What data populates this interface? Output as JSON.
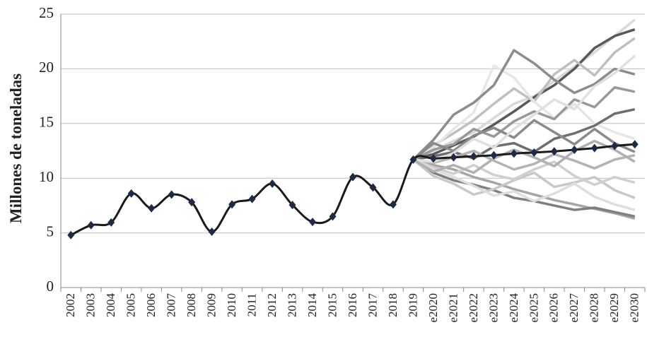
{
  "chart_data": {
    "type": "line",
    "y_label": "Millones de toneladas",
    "categories": [
      "2002",
      "2003",
      "2004",
      "2005",
      "2006",
      "2007",
      "2008",
      "2009",
      "2010",
      "2011",
      "2012",
      "2013",
      "2014",
      "2015",
      "2016",
      "2017",
      "2018",
      "2019",
      "e2020",
      "e2021",
      "e2022",
      "e2023",
      "e2024",
      "e2025",
      "e2026",
      "e2027",
      "e2028",
      "e2029",
      "e2030"
    ],
    "ylim": [
      0,
      25
    ],
    "yticks": [
      0,
      5,
      10,
      15,
      20,
      25
    ],
    "grid": true,
    "series": [
      {
        "color": "#d9d9d9",
        "values": [
          null,
          null,
          null,
          null,
          null,
          null,
          null,
          null,
          null,
          null,
          null,
          null,
          null,
          null,
          null,
          null,
          null,
          11.7,
          12.5,
          13.4,
          14.2,
          15.5,
          16.8,
          17.5,
          18.9,
          20.2,
          21.5,
          23,
          24.5
        ]
      },
      {
        "color": "#595959",
        "values": [
          null,
          null,
          null,
          null,
          null,
          null,
          null,
          null,
          null,
          null,
          null,
          null,
          null,
          null,
          null,
          null,
          null,
          11.7,
          12.2,
          13,
          13.8,
          14.9,
          16.1,
          17.4,
          18.5,
          20,
          21.9,
          23,
          23.6
        ]
      },
      {
        "color": "#a6a6a6",
        "values": [
          null,
          null,
          null,
          null,
          null,
          null,
          null,
          null,
          null,
          null,
          null,
          null,
          null,
          null,
          null,
          null,
          null,
          11.7,
          11.2,
          10.8,
          10.1,
          9.6,
          9.0,
          8.5,
          8.0,
          7.6,
          7.2,
          6.8,
          6.3
        ]
      },
      {
        "color": "#bfbfbf",
        "values": [
          null,
          null,
          null,
          null,
          null,
          null,
          null,
          null,
          null,
          null,
          null,
          null,
          null,
          null,
          null,
          null,
          null,
          11.7,
          13,
          14.1,
          15.3,
          16.8,
          18.2,
          17,
          19.5,
          20.8,
          19.4,
          21.5,
          22.8
        ]
      },
      {
        "color": "#7f7f7f",
        "values": [
          null,
          null,
          null,
          null,
          null,
          null,
          null,
          null,
          null,
          null,
          null,
          null,
          null,
          null,
          null,
          null,
          null,
          11.7,
          10.5,
          9.8,
          9.4,
          8.9,
          8.2,
          7.9,
          7.5,
          7.1,
          7.3,
          6.9,
          6.5
        ]
      },
      {
        "color": "#e6e6e6",
        "values": [
          null,
          null,
          null,
          null,
          null,
          null,
          null,
          null,
          null,
          null,
          null,
          null,
          null,
          null,
          null,
          null,
          null,
          11.7,
          12.8,
          14.5,
          16,
          20.3,
          19.2,
          17,
          15.5,
          16.8,
          15,
          14.2,
          13.6
        ]
      },
      {
        "color": "#8c8c8c",
        "values": [
          null,
          null,
          null,
          null,
          null,
          null,
          null,
          null,
          null,
          null,
          null,
          null,
          null,
          null,
          null,
          null,
          null,
          11.7,
          13.5,
          15.8,
          16.9,
          18.5,
          21.7,
          20.5,
          19,
          17.8,
          18.6,
          20,
          19.5
        ]
      },
      {
        "color": "#c8c8c8",
        "values": [
          null,
          null,
          null,
          null,
          null,
          null,
          null,
          null,
          null,
          null,
          null,
          null,
          null,
          null,
          null,
          null,
          null,
          11.7,
          10.2,
          9.5,
          8.5,
          9,
          9.8,
          10.5,
          9.2,
          9.6,
          10.1,
          8.9,
          8.2
        ]
      },
      {
        "color": "#6e6e6e",
        "values": [
          null,
          null,
          null,
          null,
          null,
          null,
          null,
          null,
          null,
          null,
          null,
          null,
          null,
          null,
          null,
          null,
          null,
          11.7,
          12,
          12.4,
          11.8,
          12.9,
          13.2,
          12.4,
          13.6,
          14.1,
          14.8,
          15.9,
          16.3
        ]
      },
      {
        "color": "#b3b3b3",
        "values": [
          null,
          null,
          null,
          null,
          null,
          null,
          null,
          null,
          null,
          null,
          null,
          null,
          null,
          null,
          null,
          null,
          null,
          11.7,
          11.4,
          11.9,
          12.5,
          11.6,
          10.8,
          11.3,
          12.2,
          11.6,
          10.9,
          11.7,
          12.1
        ]
      },
      {
        "color": "#cfcfcf",
        "values": [
          null,
          null,
          null,
          null,
          null,
          null,
          null,
          null,
          null,
          null,
          null,
          null,
          null,
          null,
          null,
          null,
          null,
          11.7,
          11,
          10.4,
          11.2,
          10.3,
          9.9,
          10.8,
          11.5,
          10.2,
          9.4,
          10.1,
          9.6
        ]
      },
      {
        "color": "#999999",
        "values": [
          null,
          null,
          null,
          null,
          null,
          null,
          null,
          null,
          null,
          null,
          null,
          null,
          null,
          null,
          null,
          null,
          null,
          11.7,
          12.6,
          13.1,
          14.5,
          13.8,
          15.2,
          16.1,
          15.4,
          17.2,
          16.5,
          18.3,
          17.9
        ]
      },
      {
        "color": "#dedede",
        "values": [
          null,
          null,
          null,
          null,
          null,
          null,
          null,
          null,
          null,
          null,
          null,
          null,
          null,
          null,
          null,
          null,
          null,
          11.7,
          10.8,
          10.1,
          9.3,
          8.4,
          8.8,
          7.9,
          8.6,
          9.5,
          8.3,
          7.6,
          7.1
        ]
      },
      {
        "color": "#8a8a8a",
        "values": [
          null,
          null,
          null,
          null,
          null,
          null,
          null,
          null,
          null,
          null,
          null,
          null,
          null,
          null,
          null,
          null,
          null,
          11.7,
          13.2,
          12.5,
          13.9,
          14.6,
          13.7,
          15.3,
          14.2,
          13.1,
          14.5,
          13.2,
          12.4
        ]
      },
      {
        "color": "#e0e0e0",
        "values": [
          null,
          null,
          null,
          null,
          null,
          null,
          null,
          null,
          null,
          null,
          null,
          null,
          null,
          null,
          null,
          null,
          null,
          11.7,
          11.5,
          12.3,
          13.6,
          12.8,
          14.5,
          15.8,
          17.2,
          16.3,
          18.4,
          19.6,
          21.2
        ]
      },
      {
        "color": "#b0b0b0",
        "values": [
          null,
          null,
          null,
          null,
          null,
          null,
          null,
          null,
          null,
          null,
          null,
          null,
          null,
          null,
          null,
          null,
          null,
          11.7,
          10.6,
          11.2,
          10.5,
          11.8,
          12.6,
          11.9,
          11.1,
          12.5,
          13.4,
          12.6,
          11.5
        ]
      },
      {
        "color": "#1a1a1a",
        "marker_color": "#1f2a48",
        "smooth": true,
        "markers": true,
        "values": [
          4.8,
          5.7,
          5.95,
          8.6,
          7.25,
          8.5,
          7.8,
          5.1,
          7.6,
          8.1,
          9.5,
          7.55,
          6.0,
          6.5,
          10.1,
          9.15,
          7.6,
          11.7,
          11.8,
          11.9,
          12.0,
          12.1,
          12.25,
          12.35,
          12.45,
          12.6,
          12.75,
          12.95,
          13.1
        ]
      }
    ]
  }
}
